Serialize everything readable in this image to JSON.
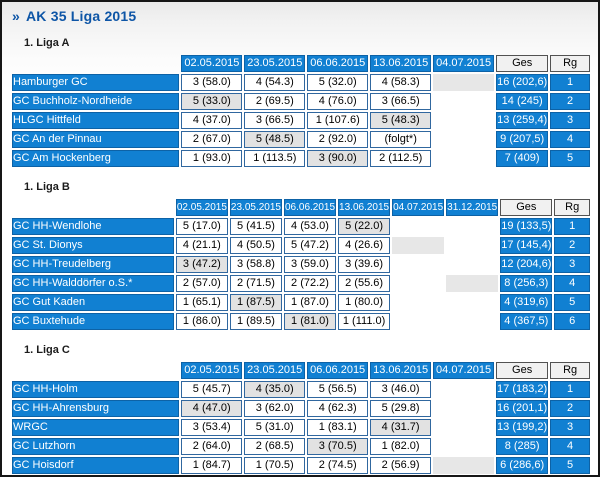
{
  "page": {
    "title_marker": "»",
    "title": "AK 35 Liga 2015"
  },
  "colors": {
    "accent_blue": "#1180d2",
    "border_blue_dark": "#0d62a6",
    "result_border_blue": "#30679f",
    "header_gray_bg": "#f1f1f1",
    "highlight_gray": "#e2e2e2",
    "placeholder_gray": "#e7e7e7",
    "title_blue": "#0d55a6",
    "frame_black": "#161616"
  },
  "ges_label": "Ges",
  "rg_label": "Rg",
  "leagues": [
    {
      "label": "1. Liga A",
      "columns": [
        "02.05.2015",
        "23.05.2015",
        "06.06.2015",
        "13.06.2015",
        "04.07.2015"
      ],
      "rows": [
        {
          "team": "Hamburger GC",
          "results": [
            {
              "v": "3 (58.0)",
              "s": "normal"
            },
            {
              "v": "4 (54.3)",
              "s": "normal"
            },
            {
              "v": "5 (32.0)",
              "s": "normal"
            },
            {
              "v": "4 (58.3)",
              "s": "normal"
            },
            {
              "v": "",
              "s": "grayblock"
            }
          ],
          "ges": "16 (202,6)",
          "rg": "1"
        },
        {
          "team": "GC Buchholz-Nordheide",
          "results": [
            {
              "v": "5 (33.0)",
              "s": "gray"
            },
            {
              "v": "2 (69.5)",
              "s": "normal"
            },
            {
              "v": "4 (76.0)",
              "s": "normal"
            },
            {
              "v": "3 (66.5)",
              "s": "normal"
            },
            {
              "v": "",
              "s": "empty"
            }
          ],
          "ges": "14 (245)",
          "rg": "2"
        },
        {
          "team": "HLGC Hittfeld",
          "results": [
            {
              "v": "4 (37.0)",
              "s": "normal"
            },
            {
              "v": "3 (66.5)",
              "s": "normal"
            },
            {
              "v": "1 (107.6)",
              "s": "normal"
            },
            {
              "v": "5 (48.3)",
              "s": "gray"
            },
            {
              "v": "",
              "s": "empty"
            }
          ],
          "ges": "13 (259,4)",
          "rg": "3"
        },
        {
          "team": "GC An der Pinnau",
          "results": [
            {
              "v": "2 (67.0)",
              "s": "normal"
            },
            {
              "v": "5 (48.5)",
              "s": "gray"
            },
            {
              "v": "2 (92.0)",
              "s": "normal"
            },
            {
              "v": "(folgt*)",
              "s": "normal"
            },
            {
              "v": "",
              "s": "empty"
            }
          ],
          "ges": "9 (207,5)",
          "rg": "4"
        },
        {
          "team": "GC Am Hockenberg",
          "results": [
            {
              "v": "1 (93.0)",
              "s": "normal"
            },
            {
              "v": "1 (113.5)",
              "s": "normal"
            },
            {
              "v": "3 (90.0)",
              "s": "gray"
            },
            {
              "v": "2 (112.5)",
              "s": "normal"
            },
            {
              "v": "",
              "s": "empty"
            }
          ],
          "ges": "7 (409)",
          "rg": "5"
        }
      ]
    },
    {
      "label": "1. Liga B",
      "columns": [
        "02.05.2015",
        "23.05.2015",
        "06.06.2015",
        "13.06.2015",
        "04.07.2015",
        "31.12.2015"
      ],
      "rows": [
        {
          "team": "GC HH-Wendlohe",
          "results": [
            {
              "v": "5 (17.0)",
              "s": "normal"
            },
            {
              "v": "5 (41.5)",
              "s": "normal"
            },
            {
              "v": "4 (53.0)",
              "s": "normal"
            },
            {
              "v": "5 (22.0)",
              "s": "gray"
            },
            {
              "v": "",
              "s": "empty"
            },
            {
              "v": "",
              "s": "empty"
            }
          ],
          "ges": "19 (133,5)",
          "rg": "1"
        },
        {
          "team": "GC St. Dionys",
          "results": [
            {
              "v": "4 (21.1)",
              "s": "normal"
            },
            {
              "v": "4 (50.5)",
              "s": "normal"
            },
            {
              "v": "5 (47.2)",
              "s": "normal"
            },
            {
              "v": "4 (26.6)",
              "s": "normal"
            },
            {
              "v": "",
              "s": "grayblock"
            },
            {
              "v": "",
              "s": "empty"
            }
          ],
          "ges": "17 (145,4)",
          "rg": "2"
        },
        {
          "team": "GC HH-Treudelberg",
          "results": [
            {
              "v": "3 (47.2)",
              "s": "gray"
            },
            {
              "v": "3 (58.8)",
              "s": "normal"
            },
            {
              "v": "3 (59.0)",
              "s": "normal"
            },
            {
              "v": "3 (39.6)",
              "s": "normal"
            },
            {
              "v": "",
              "s": "empty"
            },
            {
              "v": "",
              "s": "empty"
            }
          ],
          "ges": "12 (204,6)",
          "rg": "3"
        },
        {
          "team": "GC HH-Walddörfer o.S.*",
          "results": [
            {
              "v": "2 (57.0)",
              "s": "normal"
            },
            {
              "v": "2 (71.5)",
              "s": "normal"
            },
            {
              "v": "2 (72.2)",
              "s": "normal"
            },
            {
              "v": "2 (55.6)",
              "s": "normal"
            },
            {
              "v": "",
              "s": "empty"
            },
            {
              "v": "",
              "s": "grayblock"
            }
          ],
          "ges": "8 (256,3)",
          "rg": "4"
        },
        {
          "team": "GC Gut Kaden",
          "results": [
            {
              "v": "1 (65.1)",
              "s": "normal"
            },
            {
              "v": "1 (87.5)",
              "s": "gray"
            },
            {
              "v": "1 (87.0)",
              "s": "normal"
            },
            {
              "v": "1 (80.0)",
              "s": "normal"
            },
            {
              "v": "",
              "s": "empty"
            },
            {
              "v": "",
              "s": "empty"
            }
          ],
          "ges": "4 (319,6)",
          "rg": "5"
        },
        {
          "team": "GC Buxtehude",
          "results": [
            {
              "v": "1 (86.0)",
              "s": "normal"
            },
            {
              "v": "1 (89.5)",
              "s": "normal"
            },
            {
              "v": "1 (81.0)",
              "s": "gray"
            },
            {
              "v": "1 (111.0)",
              "s": "normal"
            },
            {
              "v": "",
              "s": "empty"
            },
            {
              "v": "",
              "s": "empty"
            }
          ],
          "ges": "4 (367,5)",
          "rg": "6"
        }
      ]
    },
    {
      "label": "1. Liga C",
      "columns": [
        "02.05.2015",
        "23.05.2015",
        "06.06.2015",
        "13.06.2015",
        "04.07.2015"
      ],
      "rows": [
        {
          "team": "GC HH-Holm",
          "results": [
            {
              "v": "5 (45.7)",
              "s": "normal"
            },
            {
              "v": "4 (35.0)",
              "s": "gray"
            },
            {
              "v": "5 (56.5)",
              "s": "normal"
            },
            {
              "v": "3 (46.0)",
              "s": "normal"
            },
            {
              "v": "",
              "s": "empty"
            }
          ],
          "ges": "17 (183,2)",
          "rg": "1"
        },
        {
          "team": "GC HH-Ahrensburg",
          "results": [
            {
              "v": "4 (47.0)",
              "s": "gray"
            },
            {
              "v": "3 (62.0)",
              "s": "normal"
            },
            {
              "v": "4 (62.3)",
              "s": "normal"
            },
            {
              "v": "5 (29.8)",
              "s": "normal"
            },
            {
              "v": "",
              "s": "empty"
            }
          ],
          "ges": "16 (201,1)",
          "rg": "2"
        },
        {
          "team": "WRGC",
          "results": [
            {
              "v": "3 (53.4)",
              "s": "normal"
            },
            {
              "v": "5 (31.0)",
              "s": "normal"
            },
            {
              "v": "1 (83.1)",
              "s": "normal"
            },
            {
              "v": "4 (31.7)",
              "s": "gray"
            },
            {
              "v": "",
              "s": "empty"
            }
          ],
          "ges": "13 (199,2)",
          "rg": "3"
        },
        {
          "team": "GC Lutzhorn",
          "results": [
            {
              "v": "2 (64.0)",
              "s": "normal"
            },
            {
              "v": "2 (68.5)",
              "s": "normal"
            },
            {
              "v": "3 (70.5)",
              "s": "gray"
            },
            {
              "v": "1 (82.0)",
              "s": "normal"
            },
            {
              "v": "",
              "s": "empty"
            }
          ],
          "ges": "8 (285)",
          "rg": "4"
        },
        {
          "team": "GC Hoisdorf",
          "results": [
            {
              "v": "1 (84.7)",
              "s": "normal"
            },
            {
              "v": "1 (70.5)",
              "s": "normal"
            },
            {
              "v": "2 (74.5)",
              "s": "normal"
            },
            {
              "v": "2 (56.9)",
              "s": "normal"
            },
            {
              "v": "",
              "s": "grayblock"
            }
          ],
          "ges": "6 (286,6)",
          "rg": "5"
        }
      ]
    }
  ]
}
